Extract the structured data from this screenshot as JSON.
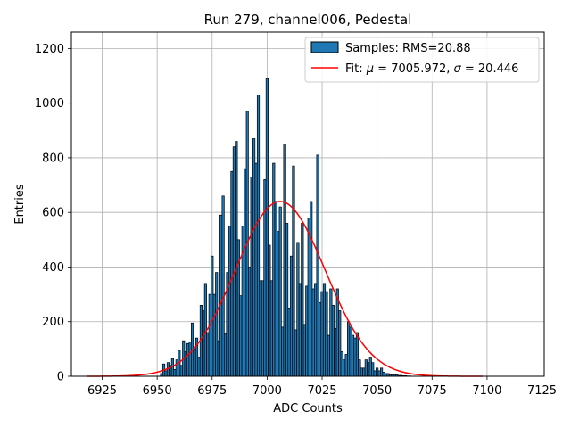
{
  "chart_data": {
    "type": "bar",
    "title": "Run 279, channel006, Pedestal",
    "xlabel": "ADC Counts",
    "ylabel": "Entries",
    "xlim": [
      6911,
      7126
    ],
    "ylim": [
      0,
      1260
    ],
    "xticks": [
      6925,
      6950,
      6975,
      7000,
      7025,
      7050,
      7075,
      7100,
      7125
    ],
    "yticks": [
      0,
      200,
      400,
      600,
      800,
      1000,
      1200
    ],
    "grid": true,
    "legend": {
      "placement": "top-right",
      "entries": [
        {
          "kind": "patch",
          "color": "#1f77b4",
          "label": "Samples: RMS=20.88"
        },
        {
          "kind": "line",
          "color": "#ff0000",
          "label_prefix": "Fit: ",
          "mu_symbol": "μ",
          "mu_text": " = 7005.972, ",
          "sigma_symbol": "σ",
          "sigma_text": " = 20.446"
        }
      ]
    },
    "series": [
      {
        "name": "Samples: RMS=20.88",
        "kind": "histogram",
        "color": "#1f77b4",
        "edge_color": "#000000",
        "x": [
          6952,
          6953,
          6954,
          6955,
          6956,
          6957,
          6958,
          6959,
          6960,
          6961,
          6962,
          6963,
          6964,
          6965,
          6966,
          6967,
          6968,
          6969,
          6970,
          6971,
          6972,
          6973,
          6974,
          6975,
          6976,
          6977,
          6978,
          6979,
          6980,
          6981,
          6982,
          6983,
          6984,
          6985,
          6986,
          6987,
          6988,
          6989,
          6990,
          6991,
          6992,
          6993,
          6994,
          6995,
          6996,
          6997,
          6998,
          6999,
          7000,
          7001,
          7002,
          7003,
          7004,
          7005,
          7006,
          7007,
          7008,
          7009,
          7010,
          7011,
          7012,
          7013,
          7014,
          7015,
          7016,
          7017,
          7018,
          7019,
          7020,
          7021,
          7022,
          7023,
          7024,
          7025,
          7026,
          7027,
          7028,
          7029,
          7030,
          7031,
          7032,
          7033,
          7034,
          7035,
          7036,
          7037,
          7038,
          7039,
          7040,
          7041,
          7042,
          7043,
          7044,
          7045,
          7046,
          7047,
          7048,
          7049,
          7050,
          7051,
          7052,
          7053,
          7054,
          7055,
          7056,
          7057,
          7058,
          7059,
          7060,
          7061,
          7062,
          7063,
          7064,
          7065
        ],
        "values": [
          10,
          45,
          20,
          50,
          40,
          65,
          25,
          60,
          95,
          40,
          130,
          90,
          120,
          125,
          195,
          100,
          140,
          70,
          260,
          240,
          340,
          160,
          300,
          440,
          300,
          380,
          130,
          590,
          660,
          155,
          380,
          550,
          750,
          840,
          860,
          500,
          295,
          550,
          760,
          970,
          400,
          730,
          870,
          780,
          1030,
          350,
          350,
          720,
          1090,
          480,
          350,
          780,
          640,
          530,
          620,
          180,
          850,
          560,
          250,
          440,
          770,
          170,
          490,
          340,
          560,
          190,
          330,
          580,
          640,
          320,
          340,
          810,
          270,
          310,
          340,
          310,
          150,
          320,
          260,
          175,
          320,
          240,
          90,
          60,
          80,
          200,
          180,
          150,
          140,
          160,
          60,
          30,
          30,
          60,
          50,
          70,
          50,
          20,
          30,
          20,
          30,
          15,
          10,
          10,
          5,
          5,
          5,
          5,
          3,
          3,
          2,
          2,
          1,
          1
        ]
      },
      {
        "name": "Fit",
        "kind": "gaussian",
        "color": "#ff0000",
        "mu": 7005.972,
        "sigma": 20.446,
        "amplitude": 640,
        "x_range": [
          6918,
          7098
        ]
      }
    ]
  }
}
